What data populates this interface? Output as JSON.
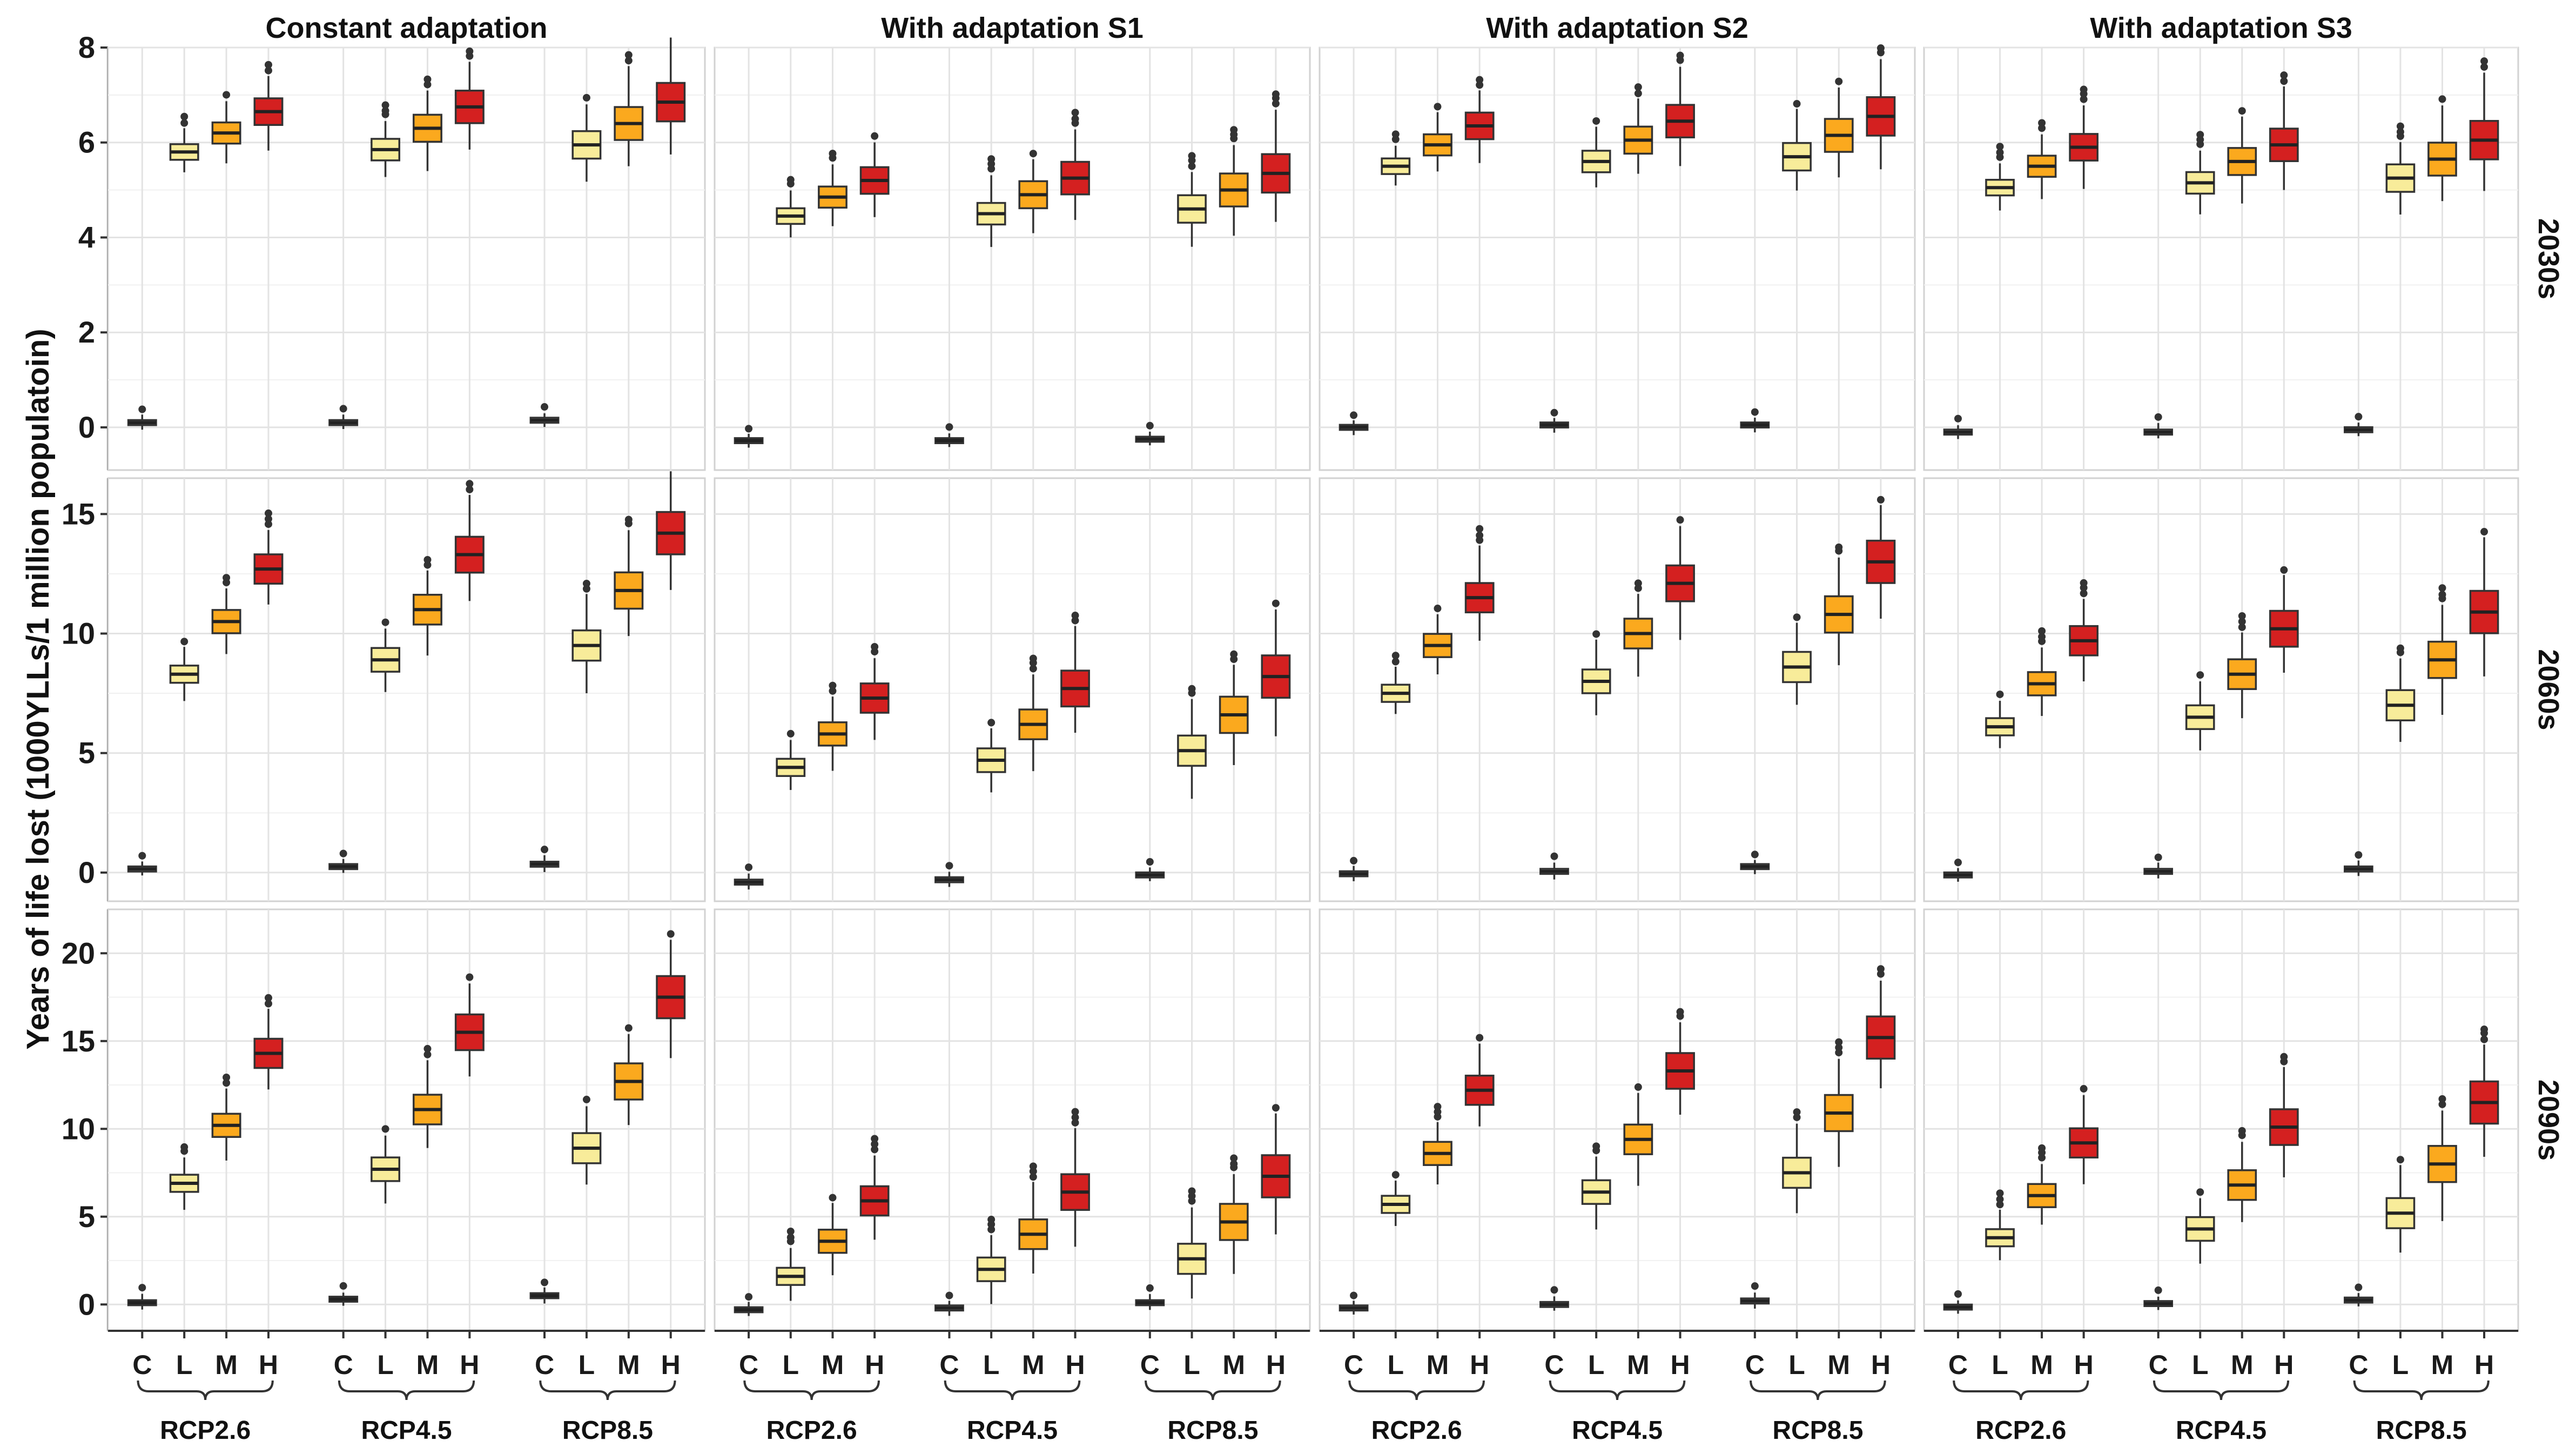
{
  "chart_data": {
    "type": "boxplot",
    "ylabel": "Years of life lost (1000YLLs/1 million populatoin)",
    "columns": [
      "Constant adaptation",
      "With adaptation S1",
      "With adaptation S2",
      "With adaptation S3"
    ],
    "rows": [
      "2030s",
      "2060s",
      "2090s"
    ],
    "groups": [
      "RCP2.6",
      "RCP4.5",
      "RCP8.5"
    ],
    "categories": [
      "C",
      "L",
      "M",
      "H"
    ],
    "colors": {
      "C": "#ffffff",
      "L": "#f8ec9a",
      "M": "#fba91e",
      "H": "#d42020"
    },
    "row_axes": [
      {
        "ylim": [
          -0.9,
          8.0
        ],
        "ticks": [
          0,
          2,
          4,
          6,
          8
        ]
      },
      {
        "ylim": [
          -1.2,
          16.5
        ],
        "ticks": [
          0,
          5,
          10,
          15
        ]
      },
      {
        "ylim": [
          -1.5,
          22.5
        ],
        "ticks": [
          0,
          5,
          10,
          15,
          20
        ]
      }
    ],
    "medians": [
      [
        [
          [
            0.1,
            5.8,
            6.2,
            6.65
          ],
          [
            0.1,
            5.85,
            6.3,
            6.75
          ],
          [
            0.15,
            5.95,
            6.4,
            6.85
          ]
        ],
        [
          [
            -0.28,
            4.45,
            4.85,
            5.2
          ],
          [
            -0.28,
            4.5,
            4.9,
            5.25
          ],
          [
            -0.25,
            4.6,
            5.0,
            5.35
          ]
        ],
        [
          [
            0.0,
            5.5,
            5.95,
            6.35
          ],
          [
            0.05,
            5.6,
            6.05,
            6.45
          ],
          [
            0.05,
            5.7,
            6.15,
            6.55
          ]
        ],
        [
          [
            -0.1,
            5.05,
            5.5,
            5.9
          ],
          [
            -0.1,
            5.15,
            5.6,
            5.95
          ],
          [
            -0.05,
            5.25,
            5.65,
            6.05
          ]
        ]
      ],
      [
        [
          [
            0.15,
            8.3,
            10.5,
            12.7
          ],
          [
            0.25,
            8.9,
            11.0,
            13.3
          ],
          [
            0.35,
            9.5,
            11.8,
            14.2
          ]
        ],
        [
          [
            -0.4,
            4.4,
            5.8,
            7.3
          ],
          [
            -0.3,
            4.7,
            6.2,
            7.7
          ],
          [
            -0.1,
            5.1,
            6.6,
            8.2
          ]
        ],
        [
          [
            -0.05,
            7.5,
            9.5,
            11.5
          ],
          [
            0.05,
            8.0,
            10.0,
            12.1
          ],
          [
            0.25,
            8.6,
            10.8,
            13.0
          ]
        ],
        [
          [
            -0.1,
            6.1,
            7.9,
            9.7
          ],
          [
            0.05,
            6.5,
            8.3,
            10.2
          ],
          [
            0.15,
            7.0,
            8.9,
            10.9
          ]
        ]
      ],
      [
        [
          [
            0.1,
            6.9,
            10.2,
            14.3
          ],
          [
            0.3,
            7.7,
            11.1,
            15.5
          ],
          [
            0.5,
            8.9,
            12.7,
            17.5
          ]
        ],
        [
          [
            -0.3,
            1.6,
            3.6,
            5.9
          ],
          [
            -0.2,
            2.0,
            4.0,
            6.4
          ],
          [
            0.1,
            2.6,
            4.7,
            7.3
          ]
        ],
        [
          [
            -0.2,
            5.7,
            8.6,
            12.2
          ],
          [
            0.0,
            6.4,
            9.4,
            13.3
          ],
          [
            0.2,
            7.5,
            10.9,
            15.2
          ]
        ],
        [
          [
            -0.15,
            3.8,
            6.2,
            9.2
          ],
          [
            0.05,
            4.3,
            6.8,
            10.1
          ],
          [
            0.25,
            5.2,
            8.0,
            11.5
          ]
        ]
      ]
    ]
  }
}
